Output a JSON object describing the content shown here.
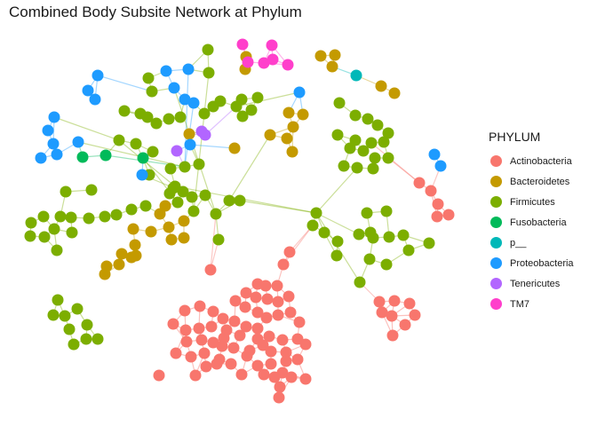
{
  "chart_data": {
    "type": "network",
    "title": "Combined Body Subsite Network at Phylum",
    "legend": {
      "title": "PHYLUM",
      "position": "right",
      "entries": [
        {
          "name": "Actinobacteria",
          "color": "#F8766D"
        },
        {
          "name": "Bacteroidetes",
          "color": "#C49A00"
        },
        {
          "name": "Firmicutes",
          "color": "#7CAE00"
        },
        {
          "name": "Fusobacteria",
          "color": "#00BA5A"
        },
        {
          "name": "p__",
          "color": "#00B8B8"
        },
        {
          "name": "Proteobacteria",
          "color": "#1E9BFF"
        },
        {
          "name": "Tenericutes",
          "color": "#B266FF"
        },
        {
          "name": "TM7",
          "color": "#FF3FCB"
        }
      ]
    }
  }
}
